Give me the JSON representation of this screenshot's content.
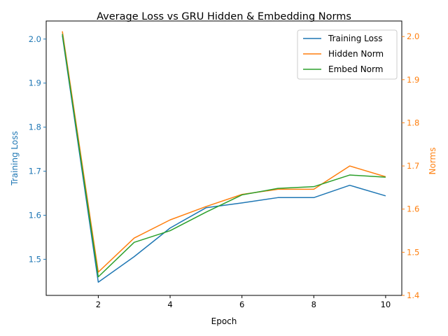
{
  "chart_data": {
    "type": "line",
    "title": "Average Loss vs GRU Hidden & Embedding Norms",
    "xlabel": "Epoch",
    "ylabel_left": "Training Loss",
    "ylabel_right": "Norms",
    "x": [
      1,
      2,
      3,
      4,
      5,
      6,
      7,
      8,
      9,
      10
    ],
    "xlim": [
      0.55,
      10.45
    ],
    "xticks": [
      2,
      4,
      6,
      8,
      10
    ],
    "ylim_left": [
      1.418,
      2.041
    ],
    "yticks_left": [
      "1.5",
      "1.6",
      "1.7",
      "1.8",
      "1.9",
      "2.0"
    ],
    "ylim_right": [
      1.4,
      2.036
    ],
    "yticks_right": [
      "1.4",
      "1.5",
      "1.6",
      "1.7",
      "1.8",
      "1.9",
      "2.0"
    ],
    "legend_position": "top-right",
    "series": [
      {
        "name": "Training Loss",
        "axis": "left",
        "color": "#1f77b4",
        "values": [
          2.008,
          1.448,
          1.506,
          1.571,
          1.617,
          1.628,
          1.64,
          1.64,
          1.668,
          1.644
        ]
      },
      {
        "name": "Hidden Norm",
        "axis": "right",
        "color": "#ff7f0e",
        "values": [
          2.012,
          1.454,
          1.533,
          1.575,
          1.606,
          1.634,
          1.646,
          1.646,
          1.7,
          1.675
        ]
      },
      {
        "name": "Embed Norm",
        "axis": "right",
        "color": "#2ca02c",
        "values": [
          2.006,
          1.443,
          1.523,
          1.55,
          1.593,
          1.633,
          1.648,
          1.652,
          1.679,
          1.674
        ]
      }
    ]
  }
}
